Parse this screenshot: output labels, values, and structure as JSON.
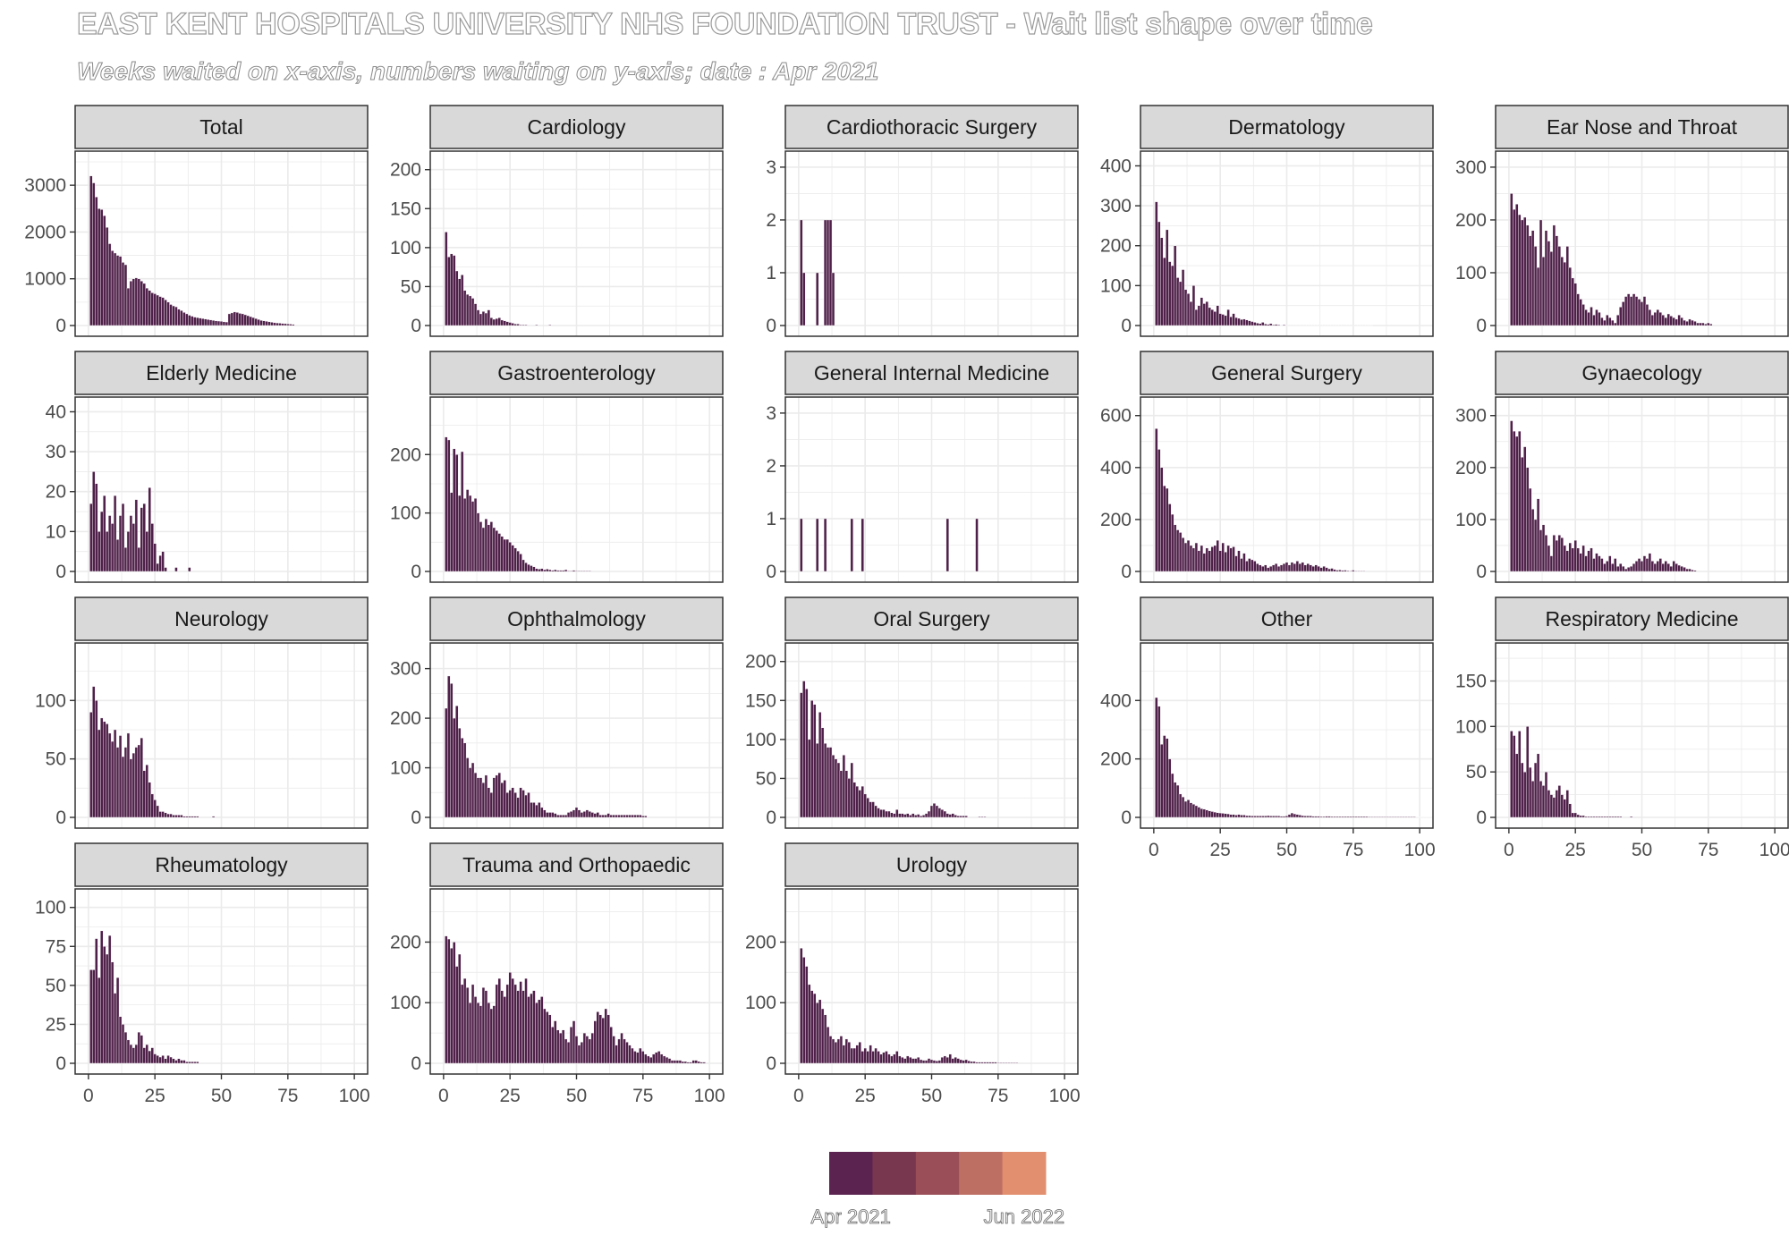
{
  "title": "EAST KENT HOSPITALS UNIVERSITY NHS FOUNDATION TRUST - Wait list shape over time",
  "subtitle": "Weeks waited on x-axis, numbers waiting on y-axis; date : Apr 2021",
  "colors": {
    "bar": "#4f2049",
    "strip_bg": "#d9d9d9",
    "grid": "#ebebeb",
    "panel_border": "#333333"
  },
  "legend": {
    "labels": [
      "Apr 2021",
      "Jun 2022"
    ],
    "colors": [
      "#5a2350",
      "#78364f",
      "#9a4e57",
      "#be6f63",
      "#e28f6f"
    ]
  },
  "chart_data": [
    {
      "type": "bar",
      "title": "Total",
      "x_range": [
        0,
        100
      ],
      "ylim": [
        0,
        3500
      ],
      "y_ticks": [
        0,
        1000,
        2000,
        3000
      ],
      "x_ticks": [],
      "values": [
        3200,
        3050,
        2750,
        2500,
        2480,
        2350,
        2100,
        1750,
        1600,
        1550,
        1500,
        1480,
        1350,
        1300,
        800,
        950,
        1000,
        1020,
        1000,
        950,
        900,
        800,
        750,
        700,
        680,
        650,
        620,
        600,
        550,
        500,
        450,
        420,
        400,
        350,
        320,
        280,
        250,
        220,
        200,
        180,
        170,
        160,
        150,
        140,
        130,
        120,
        110,
        100,
        95,
        90,
        80,
        75,
        250,
        270,
        290,
        280,
        260,
        250,
        230,
        210,
        190,
        170,
        150,
        130,
        110,
        100,
        90,
        80,
        70,
        60,
        55,
        50,
        45,
        40,
        35,
        30,
        25
      ]
    },
    {
      "type": "bar",
      "title": "Cardiology",
      "x_range": [
        0,
        100
      ],
      "ylim": [
        0,
        210
      ],
      "y_ticks": [
        0,
        50,
        100,
        150,
        200
      ],
      "x_ticks": [],
      "values": [
        120,
        88,
        92,
        90,
        70,
        60,
        65,
        45,
        40,
        38,
        35,
        28,
        20,
        15,
        18,
        16,
        20,
        10,
        8,
        9,
        10,
        7,
        6,
        5,
        4,
        3,
        2,
        2,
        1,
        1,
        1,
        0,
        0,
        0,
        1,
        0,
        0,
        0,
        0,
        1
      ]
    },
    {
      "type": "bar",
      "title": "Cardiothoracic Surgery",
      "x_range": [
        0,
        100
      ],
      "ylim": [
        0,
        3.1
      ],
      "y_ticks": [
        0,
        1,
        2,
        3
      ],
      "x_ticks": [],
      "values": [
        2,
        1,
        0,
        0,
        0,
        0,
        1,
        0,
        0,
        2,
        2,
        2,
        1
      ]
    },
    {
      "type": "bar",
      "title": "Dermatology",
      "x_range": [
        0,
        100
      ],
      "ylim": [
        0,
        410
      ],
      "y_ticks": [
        0,
        100,
        200,
        300,
        400
      ],
      "x_ticks": [],
      "values": [
        310,
        260,
        220,
        170,
        240,
        160,
        150,
        200,
        120,
        110,
        140,
        90,
        80,
        60,
        100,
        40,
        50,
        70,
        55,
        60,
        45,
        40,
        35,
        50,
        30,
        28,
        25,
        40,
        22,
        30,
        20,
        18,
        15,
        16,
        14,
        12,
        10,
        8,
        6,
        5,
        8,
        4,
        3,
        5,
        2,
        3,
        2,
        1,
        2,
        1,
        1,
        1,
        1,
        1,
        1,
        1,
        1,
        1,
        1,
        1,
        1,
        1,
        1,
        1,
        1,
        1,
        1,
        1,
        1,
        1,
        1,
        1,
        1,
        1,
        1,
        1,
        1,
        1,
        1,
        1,
        1,
        1
      ]
    },
    {
      "type": "bar",
      "title": "Ear Nose and Throat",
      "x_range": [
        0,
        100
      ],
      "ylim": [
        0,
        310
      ],
      "y_ticks": [
        0,
        100,
        200,
        300
      ],
      "x_ticks": [],
      "values": [
        250,
        220,
        230,
        210,
        200,
        205,
        190,
        170,
        180,
        150,
        110,
        200,
        130,
        180,
        160,
        140,
        190,
        170,
        150,
        130,
        120,
        150,
        110,
        90,
        80,
        60,
        50,
        40,
        30,
        25,
        35,
        20,
        30,
        25,
        15,
        10,
        20,
        15,
        10,
        5,
        20,
        35,
        45,
        55,
        60,
        55,
        60,
        55,
        50,
        45,
        55,
        40,
        30,
        20,
        25,
        30,
        25,
        20,
        15,
        22,
        18,
        15,
        12,
        20,
        15,
        10,
        8,
        12,
        10,
        8,
        5,
        5,
        5,
        3,
        5,
        3
      ]
    },
    {
      "type": "bar",
      "title": "Elderly Medicine",
      "x_range": [
        0,
        100
      ],
      "ylim": [
        0,
        41
      ],
      "y_ticks": [
        0,
        10,
        20,
        30,
        40
      ],
      "x_ticks": [],
      "values": [
        17,
        25,
        22,
        10,
        15,
        19,
        10,
        14,
        12,
        19,
        8,
        14,
        17,
        6,
        10,
        14,
        12,
        18,
        6,
        16,
        17,
        10,
        21,
        12,
        7,
        2,
        4,
        5,
        1,
        0,
        0,
        0,
        1,
        0,
        0,
        0,
        0,
        1
      ]
    },
    {
      "type": "bar",
      "title": "Gastroenterology",
      "x_range": [
        0,
        100
      ],
      "ylim": [
        0,
        280
      ],
      "y_ticks": [
        0,
        100,
        200
      ],
      "x_ticks": [],
      "values": [
        230,
        225,
        135,
        210,
        200,
        130,
        205,
        125,
        140,
        130,
        120,
        125,
        100,
        85,
        75,
        90,
        80,
        85,
        75,
        70,
        65,
        60,
        55,
        55,
        50,
        45,
        40,
        35,
        30,
        20,
        15,
        12,
        10,
        8,
        5,
        4,
        5,
        3,
        4,
        3,
        2,
        3,
        2,
        2,
        2,
        3,
        1,
        1,
        2,
        1,
        1,
        1,
        1,
        1,
        1
      ]
    },
    {
      "type": "bar",
      "title": "General Internal Medicine",
      "x_range": [
        0,
        100
      ],
      "ylim": [
        0,
        3.1
      ],
      "y_ticks": [
        0,
        1,
        2,
        3
      ],
      "x_ticks": [],
      "values": [
        1,
        0,
        0,
        0,
        0,
        0,
        1,
        0,
        0,
        1,
        0,
        0,
        0,
        0,
        0,
        0,
        0,
        0,
        0,
        1,
        0,
        0,
        0,
        1,
        0,
        0,
        0,
        0,
        0,
        0,
        0,
        0,
        0,
        0,
        0,
        0,
        0,
        0,
        0,
        0,
        0,
        0,
        0,
        0,
        0,
        0,
        0,
        0,
        0,
        0,
        0,
        0,
        0,
        0,
        0,
        1,
        0,
        0,
        0,
        0,
        0,
        0,
        0,
        0,
        0,
        0,
        1
      ]
    },
    {
      "type": "bar",
      "title": "General Surgery",
      "x_range": [
        0,
        100
      ],
      "ylim": [
        0,
        630
      ],
      "y_ticks": [
        0,
        200,
        400,
        600
      ],
      "x_ticks": [],
      "values": [
        550,
        470,
        400,
        330,
        320,
        260,
        220,
        180,
        160,
        150,
        130,
        110,
        120,
        100,
        90,
        110,
        80,
        100,
        70,
        90,
        80,
        95,
        100,
        120,
        80,
        110,
        75,
        100,
        90,
        95,
        60,
        80,
        50,
        70,
        40,
        50,
        45,
        40,
        30,
        25,
        20,
        25,
        15,
        20,
        25,
        30,
        20,
        25,
        30,
        35,
        25,
        35,
        30,
        40,
        30,
        35,
        25,
        30,
        25,
        20,
        25,
        20,
        15,
        20,
        15,
        10,
        12,
        8,
        5,
        6,
        4,
        5,
        3,
        2,
        5,
        2,
        2,
        2,
        2
      ]
    },
    {
      "type": "bar",
      "title": "Gynaecology",
      "x_range": [
        0,
        100
      ],
      "ylim": [
        0,
        315
      ],
      "y_ticks": [
        0,
        100,
        200,
        300
      ],
      "x_ticks": [],
      "values": [
        290,
        270,
        260,
        270,
        220,
        240,
        200,
        160,
        120,
        100,
        140,
        80,
        90,
        70,
        50,
        30,
        70,
        60,
        70,
        65,
        50,
        40,
        55,
        45,
        60,
        45,
        35,
        50,
        30,
        40,
        45,
        25,
        35,
        30,
        25,
        15,
        20,
        30,
        15,
        25,
        10,
        15,
        10,
        5,
        8,
        10,
        15,
        20,
        25,
        20,
        30,
        25,
        35,
        20,
        15,
        20,
        25,
        15,
        20,
        15,
        10,
        20,
        15,
        12,
        10,
        8,
        5,
        5,
        3,
        2
      ]
    },
    {
      "type": "bar",
      "title": "Neurology",
      "x_range": [
        0,
        100
      ],
      "ylim": [
        0,
        140
      ],
      "y_ticks": [
        0,
        50,
        100
      ],
      "x_ticks": [],
      "values": [
        90,
        112,
        100,
        75,
        85,
        82,
        80,
        72,
        65,
        75,
        60,
        70,
        52,
        60,
        72,
        50,
        55,
        60,
        62,
        68,
        40,
        45,
        30,
        20,
        15,
        10,
        5,
        5,
        4,
        3,
        3,
        2,
        2,
        2,
        2,
        1,
        1,
        1,
        1,
        1,
        1,
        0,
        0,
        0,
        0,
        0,
        1
      ]
    },
    {
      "type": "bar",
      "title": "Ophthalmology",
      "x_range": [
        0,
        100
      ],
      "ylim": [
        0,
        330
      ],
      "y_ticks": [
        0,
        100,
        200,
        300
      ],
      "x_ticks": [],
      "values": [
        220,
        285,
        270,
        200,
        225,
        180,
        160,
        150,
        120,
        100,
        110,
        90,
        80,
        80,
        70,
        85,
        60,
        50,
        80,
        85,
        90,
        70,
        75,
        50,
        55,
        60,
        50,
        40,
        60,
        55,
        45,
        50,
        30,
        30,
        25,
        30,
        20,
        15,
        10,
        10,
        10,
        8,
        5,
        5,
        5,
        5,
        10,
        12,
        15,
        20,
        15,
        10,
        12,
        15,
        12,
        10,
        8,
        10,
        5,
        5,
        5,
        8,
        5,
        5,
        5,
        5,
        5,
        5,
        5,
        5,
        5,
        5,
        5,
        5,
        3,
        3
      ]
    },
    {
      "type": "bar",
      "title": "Oral Surgery",
      "x_range": [
        0,
        100
      ],
      "ylim": [
        0,
        210
      ],
      "y_ticks": [
        0,
        50,
        100,
        150,
        200
      ],
      "x_ticks": [],
      "values": [
        160,
        175,
        165,
        100,
        150,
        145,
        95,
        135,
        115,
        95,
        90,
        90,
        80,
        75,
        70,
        60,
        80,
        60,
        50,
        70,
        45,
        40,
        35,
        40,
        30,
        25,
        20,
        20,
        15,
        12,
        10,
        10,
        8,
        8,
        6,
        5,
        10,
        5,
        5,
        4,
        5,
        3,
        5,
        3,
        4,
        2,
        3,
        5,
        8,
        15,
        18,
        15,
        12,
        10,
        8,
        5,
        4,
        5,
        3,
        2,
        2,
        2,
        2,
        0,
        0,
        0,
        0,
        1,
        1,
        1
      ]
    },
    {
      "type": "bar",
      "title": "Other",
      "x_range": [
        0,
        100
      ],
      "ylim": [
        0,
        560
      ],
      "y_ticks": [
        0,
        200,
        400
      ],
      "x_ticks": [
        0,
        25,
        50,
        75,
        100
      ],
      "values": [
        410,
        380,
        250,
        280,
        270,
        200,
        150,
        120,
        110,
        80,
        70,
        55,
        60,
        50,
        45,
        40,
        35,
        30,
        28,
        25,
        22,
        20,
        18,
        16,
        15,
        14,
        13,
        12,
        10,
        10,
        8,
        10,
        8,
        8,
        6,
        6,
        5,
        5,
        5,
        5,
        5,
        5,
        6,
        5,
        5,
        5,
        5,
        4,
        4,
        5,
        10,
        15,
        12,
        10,
        8,
        6,
        5,
        5,
        5,
        4,
        4,
        4,
        3,
        3,
        4,
        4,
        3,
        3,
        3,
        3,
        3,
        3,
        3,
        3,
        3,
        3,
        3,
        3,
        3,
        3,
        2,
        2,
        2,
        2,
        2,
        2,
        2,
        2,
        2,
        2,
        2,
        2,
        2,
        2,
        2,
        2,
        2,
        2,
        1,
        1,
        1,
        1,
        1,
        1,
        1,
        1
      ]
    },
    {
      "type": "bar",
      "title": "Respiratory Medicine",
      "x_range": [
        0,
        100
      ],
      "ylim": [
        0,
        180
      ],
      "y_ticks": [
        0,
        50,
        100,
        150
      ],
      "x_ticks": [
        0,
        25,
        50,
        75,
        100
      ],
      "values": [
        95,
        90,
        70,
        95,
        60,
        50,
        100,
        55,
        40,
        60,
        70,
        40,
        35,
        50,
        30,
        25,
        22,
        30,
        35,
        25,
        20,
        30,
        15,
        5,
        5,
        3,
        2,
        2,
        1,
        1,
        1,
        1,
        1,
        1,
        1,
        1,
        1,
        1,
        1,
        1,
        1,
        1,
        0,
        0,
        0,
        1
      ]
    },
    {
      "type": "bar",
      "title": "Rheumatology",
      "x_range": [
        0,
        100
      ],
      "ylim": [
        0,
        105
      ],
      "y_ticks": [
        0,
        25,
        50,
        75,
        100
      ],
      "x_ticks": [
        0,
        25,
        50,
        75,
        100
      ],
      "values": [
        60,
        60,
        80,
        55,
        85,
        75,
        70,
        82,
        65,
        45,
        55,
        30,
        25,
        20,
        15,
        12,
        10,
        12,
        20,
        18,
        10,
        12,
        8,
        10,
        6,
        5,
        4,
        5,
        3,
        5,
        4,
        3,
        2,
        3,
        2,
        2,
        1,
        1,
        1,
        1,
        1
      ]
    },
    {
      "type": "bar",
      "title": "Trauma and Orthopaedic",
      "x_range": [
        0,
        100
      ],
      "ylim": [
        0,
        270
      ],
      "y_ticks": [
        0,
        100,
        200
      ],
      "x_ticks": [
        0,
        25,
        50,
        75,
        100
      ],
      "values": [
        210,
        205,
        190,
        200,
        160,
        180,
        130,
        140,
        125,
        100,
        130,
        110,
        100,
        95,
        125,
        120,
        100,
        90,
        95,
        130,
        140,
        120,
        110,
        130,
        150,
        140,
        130,
        120,
        135,
        120,
        140,
        110,
        115,
        120,
        100,
        105,
        110,
        90,
        85,
        80,
        60,
        70,
        55,
        50,
        55,
        40,
        35,
        60,
        70,
        45,
        30,
        35,
        50,
        45,
        40,
        50,
        70,
        85,
        80,
        75,
        90,
        80,
        60,
        45,
        30,
        40,
        50,
        40,
        35,
        30,
        25,
        20,
        18,
        25,
        20,
        15,
        12,
        10,
        15,
        18,
        20,
        15,
        12,
        10,
        8,
        5,
        5,
        5,
        5,
        3,
        3,
        2,
        2,
        5,
        5,
        3,
        2,
        2
      ]
    },
    {
      "type": "bar",
      "title": "Urology",
      "x_range": [
        0,
        100
      ],
      "ylim": [
        0,
        270
      ],
      "y_ticks": [
        0,
        100,
        200
      ],
      "x_ticks": [
        0,
        25,
        50,
        75,
        100
      ],
      "values": [
        190,
        175,
        160,
        130,
        120,
        115,
        100,
        105,
        90,
        80,
        60,
        45,
        40,
        35,
        40,
        45,
        30,
        40,
        35,
        25,
        25,
        30,
        35,
        20,
        25,
        20,
        30,
        20,
        25,
        20,
        15,
        18,
        20,
        15,
        12,
        15,
        20,
        12,
        10,
        8,
        12,
        10,
        8,
        8,
        10,
        6,
        5,
        5,
        8,
        6,
        5,
        4,
        5,
        10,
        12,
        10,
        15,
        8,
        10,
        8,
        6,
        5,
        6,
        4,
        3,
        3,
        2,
        2,
        2,
        2,
        2,
        2,
        2,
        2,
        1,
        1,
        1,
        1,
        1,
        1,
        1,
        1
      ]
    }
  ]
}
